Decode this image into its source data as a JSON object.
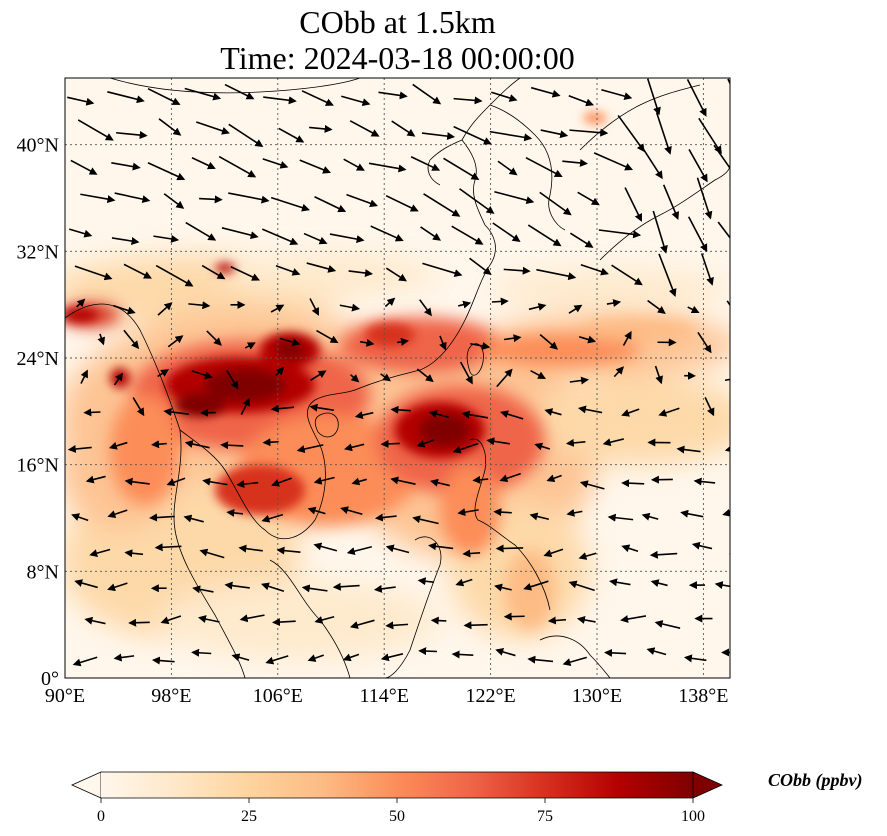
{
  "title": {
    "line1": "CObb at 1.5km",
    "line2": "Time: 2024-03-18 00:00:00"
  },
  "map": {
    "lon_range": [
      90,
      140
    ],
    "lat_range": [
      0,
      45
    ],
    "gridline_style": "dotted",
    "coastlines": true,
    "wind_vectors": true,
    "x_ticks": [
      {
        "value": 90,
        "label": "90°E"
      },
      {
        "value": 98,
        "label": "98°E"
      },
      {
        "value": 106,
        "label": "106°E"
      },
      {
        "value": 114,
        "label": "114°E"
      },
      {
        "value": 122,
        "label": "122°E"
      },
      {
        "value": 130,
        "label": "130°E"
      },
      {
        "value": 138,
        "label": "138°E"
      }
    ],
    "y_ticks": [
      {
        "value": 0,
        "label": "0°"
      },
      {
        "value": 8,
        "label": "8°N"
      },
      {
        "value": 16,
        "label": "16°N"
      },
      {
        "value": 24,
        "label": "24°N"
      },
      {
        "value": 32,
        "label": "32°N"
      },
      {
        "value": 40,
        "label": "40°N"
      }
    ]
  },
  "colorbar": {
    "colormap": "OrRd",
    "colors": [
      "#fff7ec",
      "#fee8c8",
      "#fdd49e",
      "#fdbb84",
      "#fc8d59",
      "#ef6548",
      "#d7301f",
      "#b30000",
      "#7f0000"
    ],
    "range": [
      0,
      100
    ],
    "extend": "both",
    "ticks": [
      {
        "value": 0,
        "label": "0"
      },
      {
        "value": 25,
        "label": "25"
      },
      {
        "value": 50,
        "label": "50"
      },
      {
        "value": 75,
        "label": "75"
      },
      {
        "value": 100,
        "label": "100"
      }
    ],
    "label": "CObb (ppbv)"
  }
}
